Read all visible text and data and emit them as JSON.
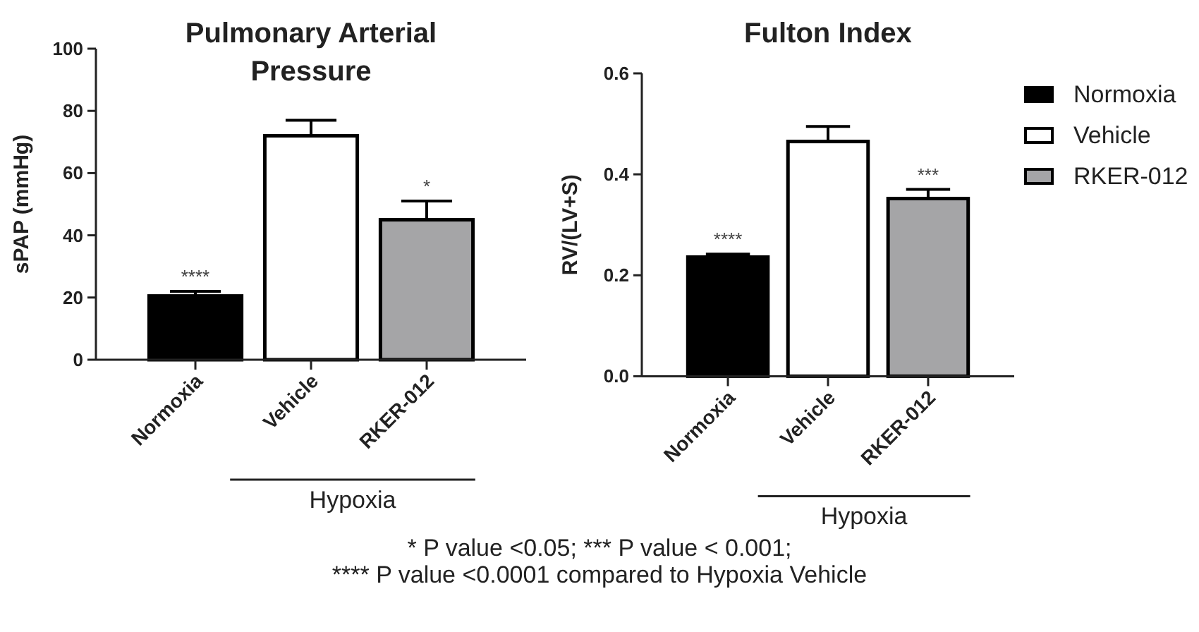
{
  "chart_data": [
    {
      "type": "bar",
      "title": "Pulmonary Arterial Pressure",
      "ylabel": "sPAP (mmHg)",
      "categories": [
        "Normoxia",
        "Vehicle",
        "RKER-012"
      ],
      "series": [
        {
          "color": "#000000",
          "values": [
            20.5,
            null,
            null
          ],
          "errors": [
            [
              20.5,
              22
            ],
            null,
            null
          ]
        },
        {
          "color": "#ffffff",
          "values": [
            null,
            72,
            null
          ],
          "errors": [
            null,
            [
              72,
              77
            ],
            null
          ]
        },
        {
          "color": "#a5a5a7",
          "values": [
            null,
            null,
            45
          ],
          "errors": [
            null,
            null,
            [
              45,
              51
            ]
          ]
        }
      ],
      "ylim": [
        0,
        100
      ],
      "yticks": [
        0,
        20,
        40,
        60,
        80,
        100
      ],
      "annotations": [
        {
          "text": "****",
          "x": "Normoxia",
          "y": 22
        },
        {
          "text": "*",
          "x": "RKER-012",
          "y": 51
        },
        "Hypoxia"
      ]
    },
    {
      "type": "bar",
      "title": "Fulton Index",
      "ylabel": "RV/(LV+S)",
      "categories": [
        "Normoxia",
        "Vehicle",
        "RKER-012"
      ],
      "series": [
        {
          "name": "Normoxia",
          "color": "#000000",
          "values": [
            0.236,
            null,
            null
          ],
          "errors": [
            [
              0.236,
              0.242
            ],
            null,
            null
          ]
        },
        {
          "name": "Vehicle",
          "color": "#ffffff",
          "values": [
            null,
            0.465,
            null
          ],
          "errors": [
            null,
            [
              0.465,
              0.495
            ],
            null
          ]
        },
        {
          "name": "RKER-012",
          "color": "#a5a5a7",
          "values": [
            null,
            null,
            0.352
          ],
          "errors": [
            null,
            null,
            [
              0.352,
              0.37
            ]
          ]
        }
      ],
      "ylim": [
        0,
        0.6
      ],
      "yticks": [
        {
          "value": 0,
          "label": "0.0"
        },
        0.2,
        0.4,
        0.6
      ],
      "legend": "right",
      "annotations": [
        {
          "text": "****",
          "x": "Normoxia",
          "y": 0.242
        },
        {
          "text": "***",
          "x": "RKER-012",
          "y": 0.37
        },
        "Hypoxia",
        "* P value <0.05; *** P value < 0.001;",
        "**** P value <0.0001 compared to Hypoxia Vehicle"
      ]
    }
  ]
}
